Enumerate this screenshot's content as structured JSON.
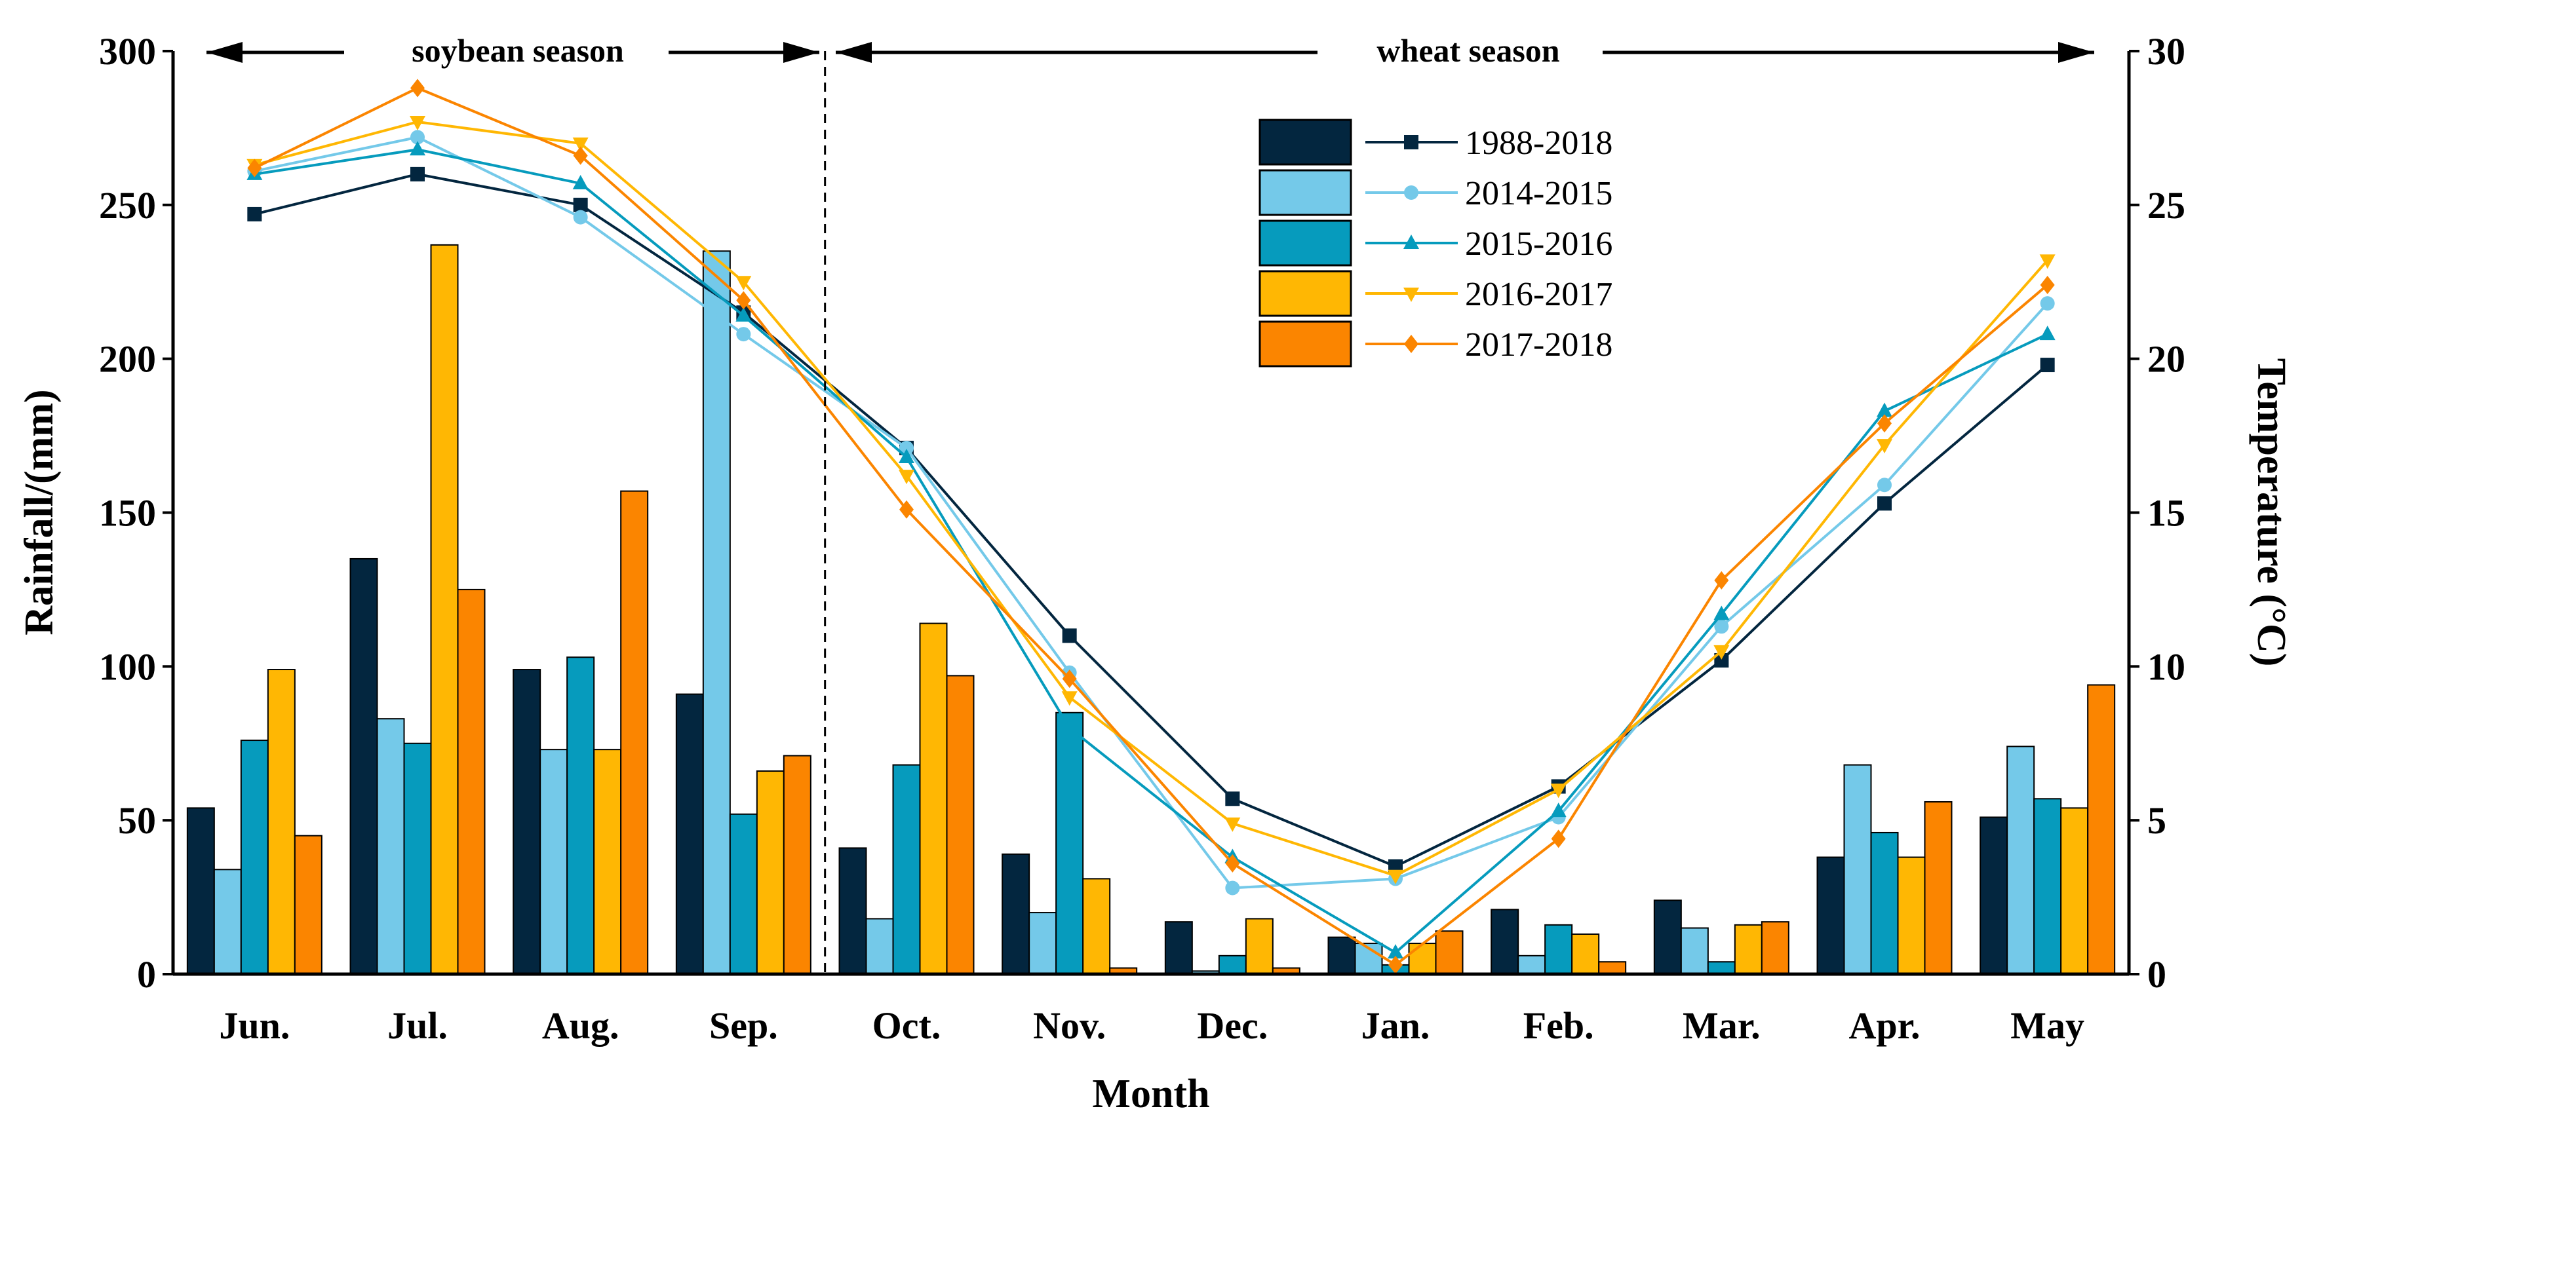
{
  "chart_data": {
    "type": "bar+line",
    "categories": [
      "Jun.",
      "Jul.",
      "Aug.",
      "Sep.",
      "Oct.",
      "Nov.",
      "Dec.",
      "Jan.",
      "Feb.",
      "Mar.",
      "Apr.",
      "May"
    ],
    "xlabel": "Month",
    "ylabel": "Rainfall/(mm)",
    "y2label": "Temperature (°C)",
    "ylim": [
      0,
      300
    ],
    "y2lim": [
      0,
      30
    ],
    "yticks": [
      0,
      50,
      100,
      150,
      200,
      250,
      300
    ],
    "y2ticks": [
      0,
      5,
      10,
      15,
      20,
      25,
      30
    ],
    "annotations": {
      "soybean": "soybean season",
      "wheat": "wheat season"
    },
    "legend_position": "top-center",
    "series": [
      {
        "name": "1988-2018",
        "color": "#03263f",
        "marker": "square",
        "rainfall": [
          54,
          135,
          99,
          91,
          41,
          39,
          17,
          12,
          21,
          24,
          38,
          51
        ],
        "temperature": [
          24.7,
          26.0,
          25.0,
          21.5,
          17.1,
          11.0,
          5.7,
          3.5,
          6.1,
          10.2,
          15.3,
          19.8
        ]
      },
      {
        "name": "2014-2015",
        "color": "#74c9e9",
        "marker": "circle",
        "rainfall": [
          34,
          83,
          73,
          235,
          18,
          20,
          1,
          10,
          6,
          15,
          68,
          74
        ],
        "temperature": [
          26.1,
          27.2,
          24.6,
          20.8,
          17.1,
          9.8,
          2.8,
          3.1,
          5.1,
          11.3,
          15.9,
          21.8
        ]
      },
      {
        "name": "2015-2016",
        "color": "#069bbd",
        "marker": "triangle-up",
        "rainfall": [
          76,
          75,
          103,
          52,
          68,
          85,
          6,
          3,
          16,
          4,
          46,
          57
        ],
        "temperature": [
          26.0,
          26.8,
          25.7,
          21.4,
          16.8,
          8.0,
          3.8,
          0.7,
          5.3,
          11.7,
          18.3,
          20.8
        ]
      },
      {
        "name": "2016-2017",
        "color": "#ffb703",
        "marker": "triangle-down",
        "rainfall": [
          99,
          237,
          73,
          66,
          114,
          31,
          18,
          10,
          13,
          16,
          38,
          54
        ],
        "temperature": [
          26.3,
          27.7,
          27.0,
          22.5,
          16.2,
          9.0,
          4.9,
          3.2,
          6.0,
          10.5,
          17.2,
          23.2
        ]
      },
      {
        "name": "2017-2018",
        "color": "#fb8500",
        "marker": "diamond",
        "rainfall": [
          45,
          125,
          157,
          71,
          97,
          2,
          2,
          14,
          4,
          17,
          56,
          94
        ],
        "temperature": [
          26.2,
          28.8,
          26.6,
          21.9,
          15.1,
          9.6,
          3.6,
          0.3,
          4.4,
          12.8,
          17.9,
          22.4
        ]
      }
    ]
  }
}
